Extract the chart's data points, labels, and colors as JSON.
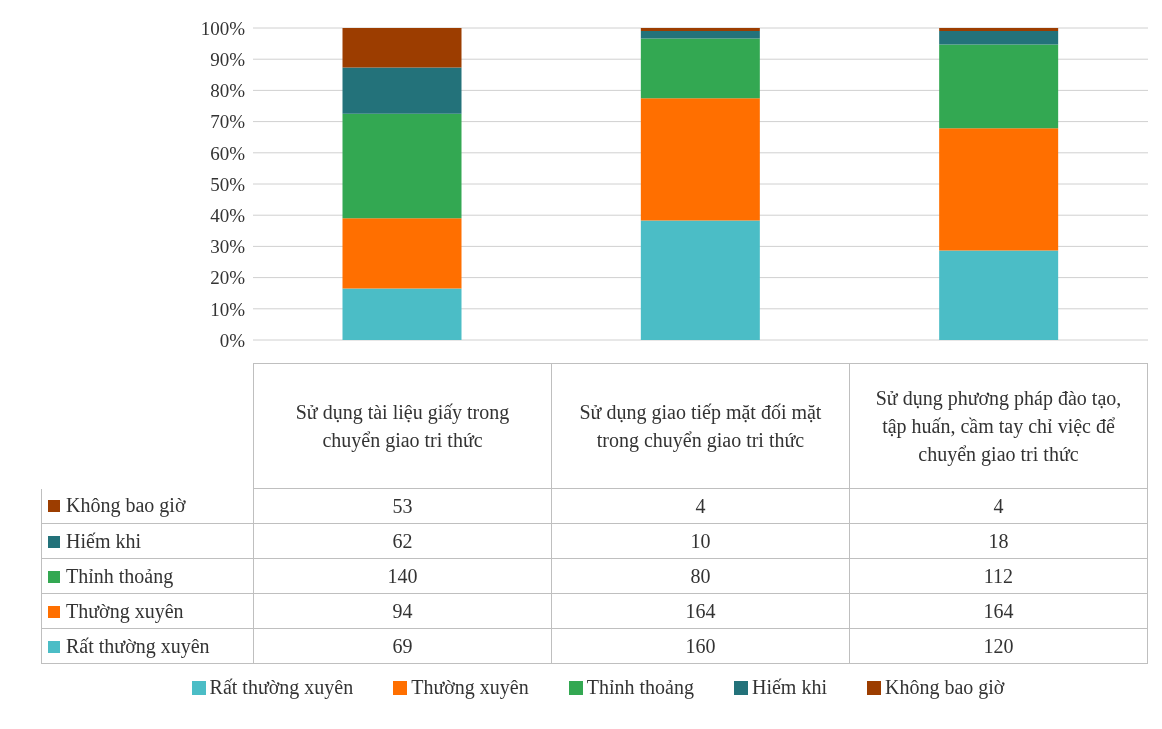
{
  "chart_data": {
    "type": "bar",
    "stacked": true,
    "categories": [
      "Sử dụng tài liệu giấy trong chuyển giao tri thức",
      "Sử dụng giao tiếp mặt đối mặt trong chuyển giao tri thức",
      "Sử dụng phương pháp đào tạo, tập huấn, cầm tay chỉ việc để chuyển giao tri thức"
    ],
    "series": [
      {
        "name": "Rất thường xuyên",
        "color": "#4bbdc6",
        "values": [
          16.5,
          38.3,
          28.7
        ]
      },
      {
        "name": "Thường xuyên",
        "color": "#ff6f00",
        "values": [
          22.5,
          39.2,
          39.2
        ]
      },
      {
        "name": "Thỉnh thoảng",
        "color": "#33a852",
        "values": [
          33.5,
          19.1,
          26.8
        ]
      },
      {
        "name": "Hiếm khi",
        "color": "#23727a",
        "values": [
          14.8,
          2.4,
          4.3
        ]
      },
      {
        "name": "Không bao giờ",
        "color": "#9c3d00",
        "values": [
          12.7,
          1.0,
          1.0
        ]
      }
    ],
    "ylim": [
      0,
      100
    ],
    "yticks": [
      {
        "value": 0,
        "label": "0%"
      },
      {
        "value": 10,
        "label": "10%"
      },
      {
        "value": 20,
        "label": "20%"
      },
      {
        "value": 30,
        "label": "30%"
      },
      {
        "value": 40,
        "label": "40%"
      },
      {
        "value": 50,
        "label": "50%"
      },
      {
        "value": 60,
        "label": "60%"
      },
      {
        "value": 70,
        "label": "70%"
      },
      {
        "value": 80,
        "label": "80%"
      },
      {
        "value": 90,
        "label": "90%"
      },
      {
        "value": 100,
        "label": "100%"
      }
    ],
    "annotations": [
      "53",
      "4",
      "4",
      "62",
      "10",
      "18",
      "140",
      "80",
      "112",
      "94",
      "164",
      "164",
      "69",
      "160",
      "120"
    ],
    "grid": "y",
    "legend": "bottom"
  }
}
